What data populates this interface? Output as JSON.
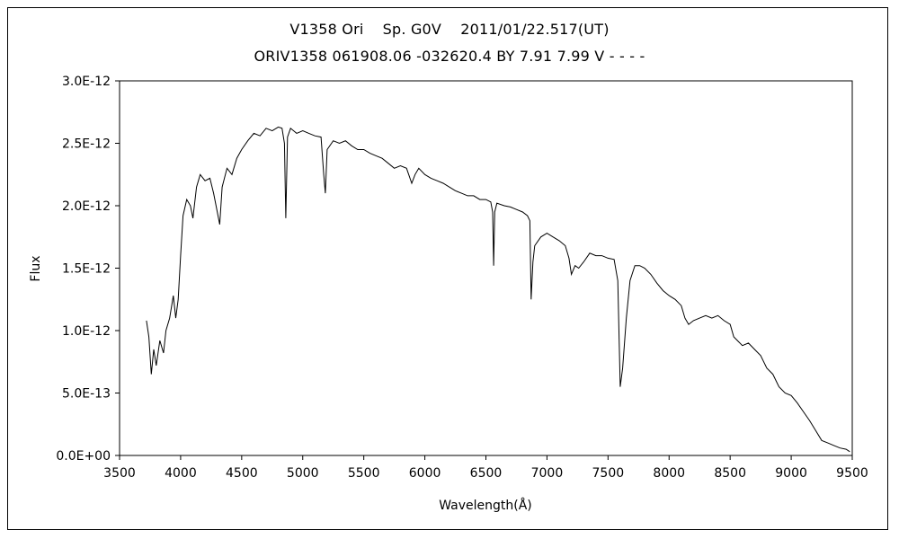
{
  "chart_data": {
    "type": "line",
    "title": "V1358 Ori    Sp. G0V    2011/01/22.517(UT)",
    "subtitle": "ORIV1358 061908.06 -032620.4 BY 7.91 7.99 V - - - -",
    "xlabel": "Wavelength(Å)",
    "ylabel": "Flux",
    "xlim": [
      3500,
      9500
    ],
    "ylim": [
      0,
      3e-12
    ],
    "x_ticks": [
      3500,
      4000,
      4500,
      5000,
      5500,
      6000,
      6500,
      7000,
      7500,
      8000,
      8500,
      9000,
      9500
    ],
    "y_ticks": [
      0,
      5e-13,
      1e-12,
      1.5e-12,
      2e-12,
      2.5e-12,
      3e-12
    ],
    "x_tick_labels": [
      "3500",
      "4000",
      "4500",
      "5000",
      "5500",
      "6000",
      "6500",
      "7000",
      "7500",
      "8000",
      "8500",
      "9000",
      "9500"
    ],
    "y_tick_labels": [
      "0.0E+00",
      "5.0E-13",
      "1.0E-12",
      "1.5E-12",
      "2.0E-12",
      "2.5E-12",
      "3.0E-12"
    ],
    "grid": false,
    "legend": "none",
    "line_color": "#000000",
    "series": [
      {
        "points": [
          [
            3720,
            1.08e-12
          ],
          [
            3740,
            9.5e-13
          ],
          [
            3760,
            6.5e-13
          ],
          [
            3780,
            8.5e-13
          ],
          [
            3800,
            7.2e-13
          ],
          [
            3830,
            9.2e-13
          ],
          [
            3860,
            8.2e-13
          ],
          [
            3880,
            1e-12
          ],
          [
            3910,
            1.1e-12
          ],
          [
            3940,
            1.28e-12
          ],
          [
            3960,
            1.1e-12
          ],
          [
            3980,
            1.25e-12
          ],
          [
            4000,
            1.6e-12
          ],
          [
            4020,
            1.92e-12
          ],
          [
            4050,
            2.05e-12
          ],
          [
            4080,
            2e-12
          ],
          [
            4101,
            1.9e-12
          ],
          [
            4130,
            2.15e-12
          ],
          [
            4160,
            2.25e-12
          ],
          [
            4200,
            2.2e-12
          ],
          [
            4240,
            2.22e-12
          ],
          [
            4270,
            2.1e-12
          ],
          [
            4300,
            1.95e-12
          ],
          [
            4320,
            1.85e-12
          ],
          [
            4340,
            2.15e-12
          ],
          [
            4380,
            2.3e-12
          ],
          [
            4420,
            2.25e-12
          ],
          [
            4460,
            2.38e-12
          ],
          [
            4500,
            2.45e-12
          ],
          [
            4550,
            2.52e-12
          ],
          [
            4600,
            2.58e-12
          ],
          [
            4650,
            2.56e-12
          ],
          [
            4700,
            2.62e-12
          ],
          [
            4750,
            2.6e-12
          ],
          [
            4800,
            2.63e-12
          ],
          [
            4830,
            2.62e-12
          ],
          [
            4850,
            2.5e-12
          ],
          [
            4861,
            1.9e-12
          ],
          [
            4875,
            2.55e-12
          ],
          [
            4900,
            2.62e-12
          ],
          [
            4950,
            2.58e-12
          ],
          [
            5000,
            2.6e-12
          ],
          [
            5050,
            2.58e-12
          ],
          [
            5100,
            2.56e-12
          ],
          [
            5150,
            2.55e-12
          ],
          [
            5172,
            2.25e-12
          ],
          [
            5185,
            2.1e-12
          ],
          [
            5200,
            2.45e-12
          ],
          [
            5250,
            2.52e-12
          ],
          [
            5300,
            2.5e-12
          ],
          [
            5350,
            2.52e-12
          ],
          [
            5400,
            2.48e-12
          ],
          [
            5450,
            2.45e-12
          ],
          [
            5500,
            2.45e-12
          ],
          [
            5550,
            2.42e-12
          ],
          [
            5600,
            2.4e-12
          ],
          [
            5650,
            2.38e-12
          ],
          [
            5700,
            2.34e-12
          ],
          [
            5750,
            2.3e-12
          ],
          [
            5800,
            2.32e-12
          ],
          [
            5850,
            2.3e-12
          ],
          [
            5893,
            2.18e-12
          ],
          [
            5920,
            2.25e-12
          ],
          [
            5950,
            2.3e-12
          ],
          [
            6000,
            2.25e-12
          ],
          [
            6050,
            2.22e-12
          ],
          [
            6100,
            2.2e-12
          ],
          [
            6150,
            2.18e-12
          ],
          [
            6200,
            2.15e-12
          ],
          [
            6250,
            2.12e-12
          ],
          [
            6300,
            2.1e-12
          ],
          [
            6350,
            2.08e-12
          ],
          [
            6400,
            2.08e-12
          ],
          [
            6450,
            2.05e-12
          ],
          [
            6500,
            2.05e-12
          ],
          [
            6540,
            2.03e-12
          ],
          [
            6555,
            1.95e-12
          ],
          [
            6563,
            1.52e-12
          ],
          [
            6572,
            1.95e-12
          ],
          [
            6590,
            2.02e-12
          ],
          [
            6650,
            2e-12
          ],
          [
            6700,
            1.99e-12
          ],
          [
            6750,
            1.97e-12
          ],
          [
            6800,
            1.95e-12
          ],
          [
            6840,
            1.92e-12
          ],
          [
            6860,
            1.88e-12
          ],
          [
            6870,
            1.25e-12
          ],
          [
            6885,
            1.55e-12
          ],
          [
            6900,
            1.68e-12
          ],
          [
            6950,
            1.75e-12
          ],
          [
            7000,
            1.78e-12
          ],
          [
            7050,
            1.75e-12
          ],
          [
            7100,
            1.72e-12
          ],
          [
            7150,
            1.68e-12
          ],
          [
            7180,
            1.58e-12
          ],
          [
            7200,
            1.45e-12
          ],
          [
            7230,
            1.52e-12
          ],
          [
            7260,
            1.5e-12
          ],
          [
            7300,
            1.55e-12
          ],
          [
            7350,
            1.62e-12
          ],
          [
            7400,
            1.6e-12
          ],
          [
            7450,
            1.6e-12
          ],
          [
            7500,
            1.58e-12
          ],
          [
            7550,
            1.57e-12
          ],
          [
            7580,
            1.4e-12
          ],
          [
            7600,
            5.5e-13
          ],
          [
            7620,
            7e-13
          ],
          [
            7650,
            1.1e-12
          ],
          [
            7680,
            1.4e-12
          ],
          [
            7720,
            1.52e-12
          ],
          [
            7760,
            1.52e-12
          ],
          [
            7800,
            1.5e-12
          ],
          [
            7850,
            1.45e-12
          ],
          [
            7900,
            1.38e-12
          ],
          [
            7950,
            1.32e-12
          ],
          [
            8000,
            1.28e-12
          ],
          [
            8050,
            1.25e-12
          ],
          [
            8100,
            1.2e-12
          ],
          [
            8130,
            1.1e-12
          ],
          [
            8160,
            1.05e-12
          ],
          [
            8200,
            1.08e-12
          ],
          [
            8250,
            1.1e-12
          ],
          [
            8300,
            1.12e-12
          ],
          [
            8350,
            1.1e-12
          ],
          [
            8400,
            1.12e-12
          ],
          [
            8450,
            1.08e-12
          ],
          [
            8500,
            1.05e-12
          ],
          [
            8530,
            9.5e-13
          ],
          [
            8560,
            9.2e-13
          ],
          [
            8600,
            8.8e-13
          ],
          [
            8650,
            9e-13
          ],
          [
            8700,
            8.5e-13
          ],
          [
            8750,
            8e-13
          ],
          [
            8800,
            7e-13
          ],
          [
            8850,
            6.5e-13
          ],
          [
            8900,
            5.5e-13
          ],
          [
            8950,
            5e-13
          ],
          [
            9000,
            4.8e-13
          ],
          [
            9050,
            4.2e-13
          ],
          [
            9100,
            3.5e-13
          ],
          [
            9150,
            2.8e-13
          ],
          [
            9200,
            2e-13
          ],
          [
            9250,
            1.2e-13
          ],
          [
            9300,
            1e-13
          ],
          [
            9350,
            8e-14
          ],
          [
            9400,
            6e-14
          ],
          [
            9450,
            5e-14
          ],
          [
            9480,
            3e-14
          ]
        ]
      }
    ]
  }
}
